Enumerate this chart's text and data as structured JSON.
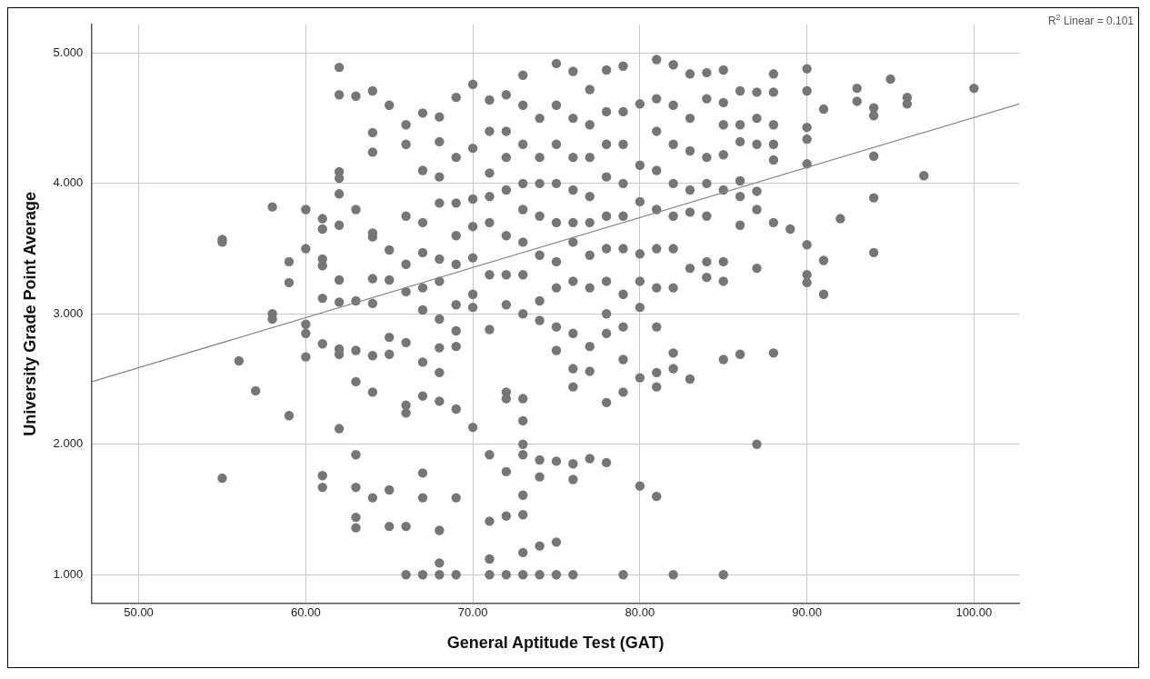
{
  "chart_data": {
    "type": "scatter",
    "xlabel": "General Aptitude Test (GAT)",
    "ylabel": "University Grade Point Average",
    "annotations": [
      "R$^{2}$ Linear = 0.101"
    ],
    "xlim": [
      47.2,
      102.7
    ],
    "ylim": [
      0.78,
      5.22
    ],
    "xticks": [
      {
        "value": 50,
        "label": "50.00"
      },
      {
        "value": 60,
        "label": "60.00"
      },
      {
        "value": 70,
        "label": "70.00"
      },
      {
        "value": 80,
        "label": "80.00"
      },
      {
        "value": 90,
        "label": "90.00"
      },
      {
        "value": 100,
        "label": "100.00"
      }
    ],
    "yticks": [
      {
        "value": 1,
        "label": "1.000"
      },
      {
        "value": 2,
        "label": "2.000"
      },
      {
        "value": 3,
        "label": "3.000"
      },
      {
        "value": 4,
        "label": "4.000"
      },
      {
        "value": 5,
        "label": "5.000"
      }
    ],
    "grid": true,
    "legend": false,
    "marker": "circle",
    "series": [
      {
        "type": "scatter",
        "color": "#767676",
        "x": [
          55,
          55,
          55,
          56,
          57,
          58,
          58,
          58,
          59,
          59,
          59,
          60,
          60,
          60,
          60,
          60,
          61,
          61,
          61,
          61,
          61,
          61,
          61,
          61,
          62,
          62,
          62,
          62,
          62,
          62,
          62,
          62,
          62,
          62,
          62,
          63,
          63,
          63,
          63,
          63,
          63,
          63,
          63,
          63,
          64,
          64,
          64,
          64,
          64,
          64,
          64,
          64,
          64,
          64,
          65,
          65,
          65,
          65,
          65,
          65,
          65,
          66,
          66,
          66,
          66,
          66,
          66,
          66,
          66,
          66,
          66,
          67,
          67,
          67,
          67,
          67,
          67,
          67,
          67,
          67,
          67,
          67,
          68,
          68,
          68,
          68,
          68,
          68,
          68,
          68,
          68,
          68,
          68,
          68,
          68,
          69,
          69,
          69,
          69,
          69,
          69,
          69,
          69,
          69,
          69,
          69,
          70,
          70,
          70,
          70,
          70,
          70,
          70,
          70,
          71,
          71,
          71,
          71,
          71,
          71,
          71,
          71,
          71,
          71,
          71,
          72,
          72,
          72,
          72,
          72,
          72,
          72,
          72,
          72,
          72,
          72,
          72,
          73,
          73,
          73,
          73,
          73,
          73,
          73,
          73,
          73,
          73,
          73,
          73,
          73,
          73,
          73,
          73,
          74,
          74,
          74,
          74,
          74,
          74,
          74,
          74,
          74,
          74,
          74,
          75,
          75,
          75,
          75,
          75,
          75,
          75,
          75,
          75,
          75,
          75,
          75,
          76,
          76,
          76,
          76,
          76,
          76,
          76,
          76,
          76,
          76,
          76,
          76,
          76,
          77,
          77,
          77,
          77,
          77,
          77,
          77,
          77,
          77,
          77,
          78,
          78,
          78,
          78,
          78,
          78,
          78,
          78,
          78,
          78,
          78,
          79,
          79,
          79,
          79,
          79,
          79,
          79,
          79,
          79,
          79,
          79,
          80,
          80,
          80,
          80,
          80,
          80,
          80,
          80,
          81,
          81,
          81,
          81,
          81,
          81,
          81,
          81,
          81,
          81,
          81,
          82,
          82,
          82,
          82,
          82,
          82,
          82,
          82,
          82,
          82,
          83,
          83,
          83,
          83,
          83,
          83,
          83,
          84,
          84,
          84,
          84,
          84,
          84,
          84,
          85,
          85,
          85,
          85,
          85,
          85,
          85,
          85,
          85,
          86,
          86,
          86,
          86,
          86,
          86,
          86,
          87,
          87,
          87,
          87,
          87,
          87,
          87,
          88,
          88,
          88,
          88,
          88,
          88,
          88,
          89,
          90,
          90,
          90,
          90,
          90,
          90,
          90,
          90,
          91,
          91,
          91,
          92,
          93,
          93,
          94,
          94,
          94,
          94,
          94,
          95,
          96,
          96,
          97,
          100
        ],
        "values": [
          3.57,
          3.55,
          1.74,
          2.64,
          2.41,
          3.82,
          3.0,
          2.96,
          3.4,
          3.24,
          2.22,
          3.8,
          3.5,
          2.92,
          2.85,
          2.67,
          3.73,
          3.65,
          3.42,
          3.37,
          3.12,
          2.77,
          1.76,
          1.67,
          4.89,
          4.68,
          4.09,
          4.04,
          3.92,
          3.68,
          3.26,
          3.09,
          2.73,
          2.69,
          2.12,
          4.67,
          3.8,
          3.1,
          2.72,
          2.48,
          1.92,
          1.67,
          1.44,
          1.36,
          4.71,
          4.39,
          4.24,
          3.62,
          3.59,
          3.27,
          3.08,
          2.68,
          2.4,
          1.59,
          4.6,
          3.49,
          3.26,
          2.82,
          2.69,
          1.65,
          1.37,
          4.45,
          4.3,
          3.75,
          3.38,
          3.17,
          2.78,
          2.3,
          2.24,
          1.37,
          1.0,
          4.54,
          4.1,
          3.7,
          3.47,
          3.2,
          3.03,
          2.63,
          2.37,
          1.78,
          1.59,
          1.0,
          4.51,
          4.32,
          4.05,
          3.85,
          3.42,
          3.25,
          2.96,
          2.74,
          2.55,
          2.33,
          1.34,
          1.09,
          1.0,
          4.66,
          4.2,
          3.85,
          3.6,
          3.38,
          3.07,
          2.87,
          2.75,
          2.27,
          1.59,
          1.0,
          4.76,
          4.27,
          3.88,
          3.67,
          3.43,
          3.15,
          3.05,
          2.13,
          4.64,
          4.4,
          4.08,
          3.9,
          3.7,
          3.3,
          2.88,
          1.92,
          1.41,
          1.12,
          1.0,
          4.68,
          4.4,
          4.2,
          3.95,
          3.6,
          3.3,
          3.07,
          2.4,
          2.35,
          1.79,
          1.45,
          1.0,
          4.83,
          4.6,
          4.3,
          4.0,
          3.8,
          3.55,
          3.3,
          3.0,
          2.35,
          2.18,
          2.0,
          1.92,
          1.61,
          1.46,
          1.17,
          1.0,
          4.5,
          4.2,
          4.0,
          3.75,
          3.45,
          3.1,
          2.95,
          1.88,
          1.75,
          1.22,
          1.0,
          4.92,
          4.6,
          4.3,
          4.0,
          3.7,
          3.4,
          3.2,
          2.9,
          2.72,
          1.87,
          1.25,
          1.0,
          4.86,
          4.5,
          4.2,
          3.95,
          3.7,
          3.55,
          3.25,
          2.85,
          2.58,
          2.44,
          1.85,
          1.73,
          1.0,
          4.72,
          4.45,
          4.2,
          3.9,
          3.7,
          3.45,
          3.2,
          2.75,
          2.56,
          1.89,
          4.87,
          4.55,
          4.3,
          4.05,
          3.75,
          3.5,
          3.25,
          3.0,
          2.85,
          2.32,
          1.86,
          4.9,
          4.55,
          4.3,
          4.0,
          3.75,
          3.5,
          3.15,
          2.9,
          2.65,
          2.4,
          1.0,
          4.61,
          4.14,
          3.86,
          3.46,
          3.25,
          3.05,
          2.51,
          1.68,
          4.95,
          4.65,
          4.4,
          4.1,
          3.8,
          3.5,
          3.2,
          2.9,
          2.55,
          2.44,
          1.6,
          4.91,
          4.6,
          4.3,
          4.0,
          3.75,
          3.5,
          3.2,
          2.7,
          2.58,
          1.0,
          4.84,
          4.5,
          4.25,
          3.95,
          3.78,
          3.35,
          2.5,
          4.85,
          4.65,
          4.2,
          4.0,
          3.75,
          3.4,
          3.28,
          4.87,
          4.62,
          4.45,
          4.22,
          3.95,
          3.4,
          3.25,
          2.65,
          1.0,
          4.71,
          4.45,
          4.32,
          4.02,
          3.9,
          3.68,
          2.69,
          4.7,
          4.5,
          4.3,
          3.94,
          3.8,
          3.35,
          2.0,
          4.84,
          4.7,
          4.45,
          4.3,
          4.18,
          3.7,
          2.7,
          3.65,
          4.88,
          4.71,
          4.43,
          4.34,
          4.15,
          3.53,
          3.3,
          3.24,
          4.57,
          3.41,
          3.15,
          3.73,
          4.73,
          4.63,
          4.58,
          4.52,
          4.21,
          3.89,
          3.47,
          4.8,
          4.66,
          4.61,
          4.06,
          4.73
        ]
      },
      {
        "type": "line",
        "color": "#888888",
        "marker": "none",
        "x": [
          47.2,
          102.7
        ],
        "values": [
          2.48,
          4.61
        ]
      }
    ]
  }
}
